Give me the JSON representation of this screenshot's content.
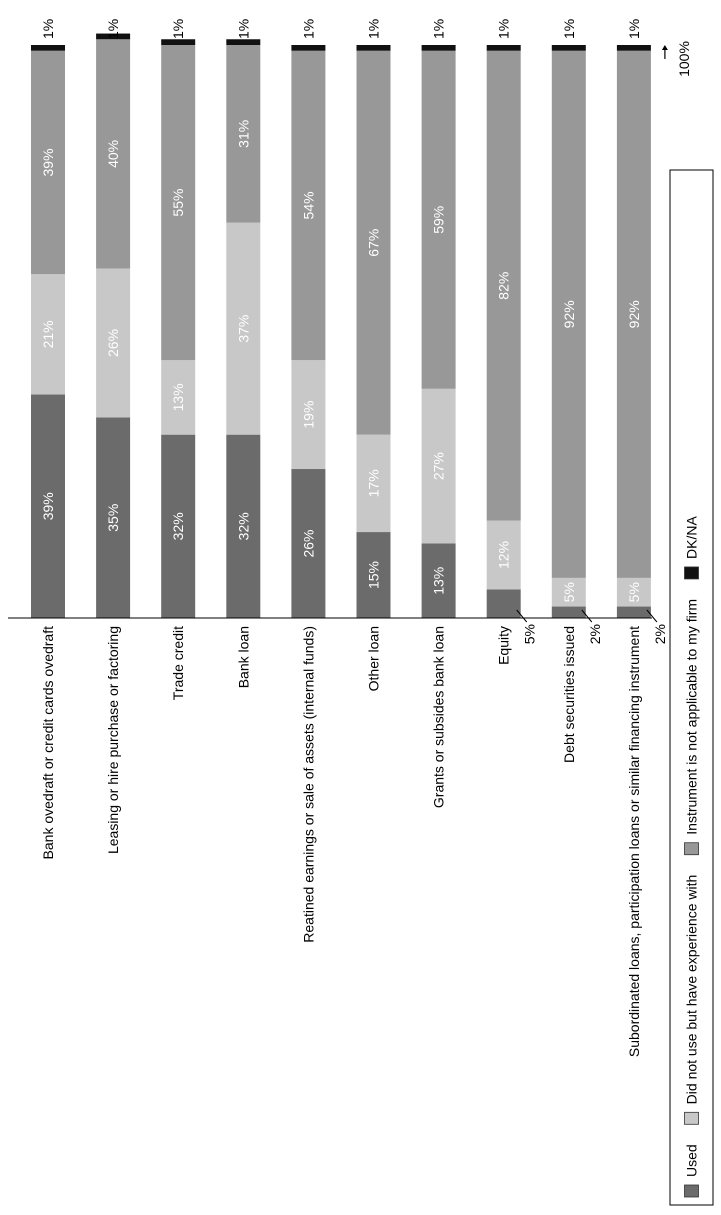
{
  "chart_data": {
    "type": "bar",
    "orientation": "horizontal-stacked-100",
    "categories": [
      "Bank ovedraft or credit cards ovedraft",
      "Leasing or hire purchase or factoring",
      "Trade credit",
      "Bank loan",
      "Reatined earnings or sale of assets (internal funds)",
      "Other loan",
      "Grants or subsides bank loan",
      "Equity",
      "Debt securities issued",
      "Subordinated loans, participation loans or similar financing instrument"
    ],
    "series": [
      {
        "name": "Used",
        "color": "#6b6b6b",
        "label_color": "#ffffff",
        "values": [
          39,
          35,
          32,
          32,
          26,
          15,
          13,
          5,
          2,
          2
        ],
        "labels": [
          "39%",
          "35%",
          "32%",
          "32%",
          "26%",
          "15%",
          "13%",
          "5%",
          "2%",
          "2%"
        ]
      },
      {
        "name": "Did not use but have experience with",
        "color": "#c8c8c8",
        "label_color": "#ffffff",
        "values": [
          21,
          26,
          13,
          37,
          19,
          17,
          27,
          12,
          5,
          5
        ],
        "labels": [
          "21%",
          "26%",
          "13%",
          "37%",
          "19%",
          "17%",
          "27%",
          "12%",
          "5%",
          "5%"
        ]
      },
      {
        "name": "Instrument is not applicable to my firm",
        "color": "#989898",
        "label_color": "#ffffff",
        "values": [
          39,
          40,
          55,
          31,
          54,
          67,
          59,
          82,
          92,
          92
        ],
        "labels": [
          "39%",
          "40%",
          "55%",
          "31%",
          "54%",
          "67%",
          "59%",
          "82%",
          "92%",
          "92%"
        ]
      },
      {
        "name": "DK/NA",
        "color": "#111111",
        "label_color": "#000000",
        "values": [
          1,
          1,
          1,
          1,
          1,
          1,
          1,
          1,
          1,
          1
        ],
        "labels": [
          "1%",
          "1%",
          "1%",
          "1%",
          "1%",
          "1%",
          "1%",
          "1%",
          "1%",
          "1%"
        ]
      }
    ],
    "xlim": [
      0,
      100
    ],
    "end_marker": "100%",
    "legend_position": "bottom",
    "grid": false
  }
}
